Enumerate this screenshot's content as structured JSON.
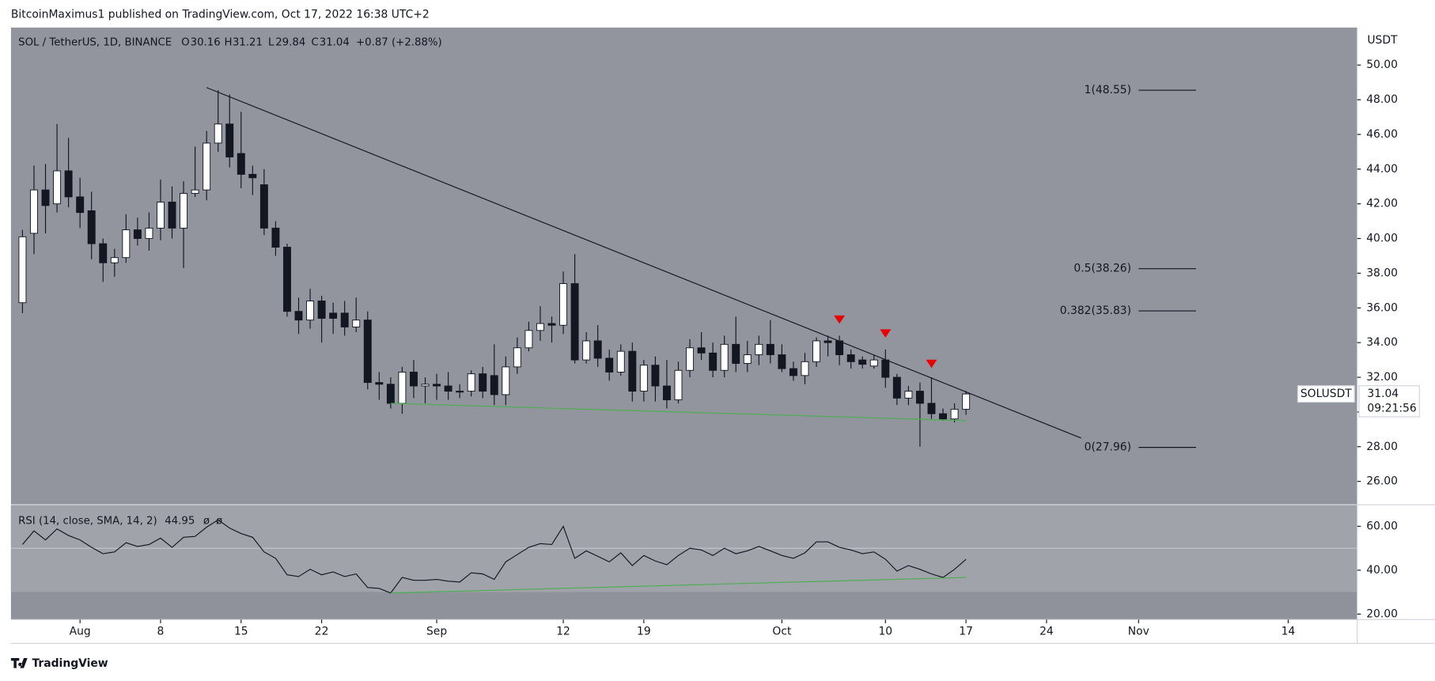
{
  "header": {
    "publisher": "BitcoinMaximus1 published on TradingView.com, Oct 17, 2022 16:38 UTC+2",
    "footer": "TradingView"
  },
  "chart_data": [
    {
      "type": "candlestick",
      "title": "SOL / TetherUS, 1D, BINANCE",
      "ohlc_letters": [
        "O",
        "H",
        "L",
        "C"
      ],
      "change": "+0.87 (+2.88%)",
      "symbol": "SOLUSDT",
      "countdown": "09:21:56",
      "y_unit": "USDT",
      "up_color": "#ffffff",
      "down_color": "#131722",
      "wick_color": "#131722",
      "grid": false,
      "x": [
        "2022-07-27",
        "2022-07-28",
        "2022-07-29",
        "2022-07-30",
        "2022-07-31",
        "2022-08-01",
        "2022-08-02",
        "2022-08-03",
        "2022-08-04",
        "2022-08-05",
        "2022-08-06",
        "2022-08-07",
        "2022-08-08",
        "2022-08-09",
        "2022-08-10",
        "2022-08-11",
        "2022-08-12",
        "2022-08-13",
        "2022-08-14",
        "2022-08-15",
        "2022-08-16",
        "2022-08-17",
        "2022-08-18",
        "2022-08-19",
        "2022-08-20",
        "2022-08-21",
        "2022-08-22",
        "2022-08-23",
        "2022-08-24",
        "2022-08-25",
        "2022-08-26",
        "2022-08-27",
        "2022-08-28",
        "2022-08-29",
        "2022-08-30",
        "2022-08-31",
        "2022-09-01",
        "2022-09-02",
        "2022-09-03",
        "2022-09-04",
        "2022-09-05",
        "2022-09-06",
        "2022-09-07",
        "2022-09-08",
        "2022-09-09",
        "2022-09-10",
        "2022-09-11",
        "2022-09-12",
        "2022-09-13",
        "2022-09-14",
        "2022-09-15",
        "2022-09-16",
        "2022-09-17",
        "2022-09-18",
        "2022-09-19",
        "2022-09-20",
        "2022-09-21",
        "2022-09-22",
        "2022-09-23",
        "2022-09-24",
        "2022-09-25",
        "2022-09-26",
        "2022-09-27",
        "2022-09-28",
        "2022-09-29",
        "2022-09-30",
        "2022-10-01",
        "2022-10-02",
        "2022-10-03",
        "2022-10-04",
        "2022-10-05",
        "2022-10-06",
        "2022-10-07",
        "2022-10-08",
        "2022-10-09",
        "2022-10-10",
        "2022-10-11",
        "2022-10-12",
        "2022-10-13",
        "2022-10-14",
        "2022-10-15",
        "2022-10-16",
        "2022-10-17"
      ],
      "open": [
        36.3,
        40.3,
        42.8,
        42.0,
        43.9,
        42.4,
        41.6,
        39.7,
        38.6,
        38.9,
        40.5,
        40.0,
        40.6,
        42.1,
        40.6,
        42.6,
        42.8,
        45.5,
        46.6,
        44.9,
        43.7,
        43.1,
        40.6,
        39.5,
        35.8,
        35.3,
        36.4,
        35.7,
        35.7,
        34.9,
        35.3,
        31.7,
        31.6,
        30.5,
        32.3,
        31.5,
        31.6,
        31.5,
        31.2,
        31.2,
        32.2,
        32.1,
        31.0,
        32.6,
        33.7,
        34.7,
        35.1,
        35.0,
        37.4,
        33.0,
        34.1,
        33.1,
        32.3,
        33.5,
        31.2,
        32.7,
        31.5,
        30.7,
        32.4,
        33.7,
        33.4,
        32.4,
        33.9,
        32.8,
        33.3,
        33.9,
        33.3,
        32.5,
        32.1,
        32.9,
        34.1,
        34.1,
        33.3,
        33.0,
        32.65,
        33.0,
        32.0,
        30.8,
        31.2,
        30.5,
        29.9,
        29.6,
        30.16
      ],
      "high": [
        40.5,
        44.2,
        44.3,
        46.6,
        45.8,
        43.5,
        42.7,
        40.0,
        39.4,
        41.4,
        41.2,
        41.5,
        43.4,
        43.0,
        43.3,
        45.3,
        46.2,
        48.55,
        48.3,
        47.3,
        44.2,
        44.0,
        41.0,
        39.7,
        36.6,
        37.1,
        36.7,
        36.3,
        36.4,
        36.6,
        35.8,
        32.3,
        32.0,
        32.6,
        33.0,
        32.0,
        32.2,
        32.3,
        31.6,
        32.4,
        32.6,
        33.9,
        33.2,
        34.3,
        35.2,
        36.1,
        35.5,
        38.1,
        39.1,
        34.6,
        35.0,
        33.6,
        33.9,
        34.0,
        33.0,
        33.2,
        33.0,
        32.9,
        34.2,
        34.6,
        34.0,
        34.4,
        35.5,
        34.1,
        34.4,
        35.3,
        33.9,
        32.9,
        33.4,
        34.3,
        34.4,
        34.4,
        33.6,
        33.2,
        33.3,
        33.6,
        32.2,
        31.5,
        31.7,
        32.0,
        30.2,
        30.5,
        31.21
      ],
      "low": [
        35.7,
        39.1,
        40.3,
        41.5,
        41.8,
        40.6,
        38.8,
        37.5,
        37.8,
        38.6,
        39.6,
        39.3,
        39.9,
        40.0,
        38.3,
        42.4,
        42.2,
        45.0,
        44.1,
        42.9,
        42.5,
        40.2,
        39.0,
        35.5,
        34.5,
        34.8,
        34.0,
        34.5,
        34.4,
        34.6,
        31.3,
        30.7,
        30.2,
        29.9,
        30.8,
        30.5,
        30.7,
        30.7,
        30.8,
        30.9,
        30.8,
        30.4,
        30.4,
        32.2,
        33.5,
        34.1,
        34.0,
        34.5,
        32.8,
        32.8,
        32.6,
        31.8,
        32.1,
        30.6,
        30.6,
        30.6,
        30.2,
        30.5,
        32.0,
        33.0,
        32.0,
        32.0,
        32.3,
        32.3,
        32.7,
        32.8,
        32.3,
        31.8,
        31.6,
        32.6,
        33.2,
        32.7,
        32.5,
        32.5,
        32.5,
        31.4,
        30.4,
        30.4,
        28.0,
        29.6,
        29.5,
        29.4,
        29.84
      ],
      "close": [
        40.1,
        42.8,
        41.9,
        43.9,
        42.4,
        41.5,
        39.7,
        38.6,
        38.9,
        40.5,
        40.0,
        40.6,
        42.1,
        40.6,
        42.6,
        42.8,
        45.5,
        46.6,
        44.7,
        43.7,
        43.5,
        40.6,
        39.5,
        35.8,
        35.3,
        36.4,
        35.4,
        35.4,
        34.9,
        35.3,
        31.7,
        31.6,
        30.5,
        32.3,
        31.5,
        31.6,
        31.5,
        31.2,
        31.15,
        32.2,
        31.2,
        31.0,
        32.6,
        33.7,
        34.7,
        35.1,
        35.0,
        37.4,
        33.0,
        34.1,
        33.1,
        32.3,
        33.5,
        31.2,
        32.7,
        31.5,
        30.7,
        32.4,
        33.7,
        33.4,
        32.4,
        33.9,
        32.8,
        33.3,
        33.9,
        33.3,
        32.5,
        32.1,
        32.9,
        34.1,
        34.0,
        33.3,
        32.9,
        32.75,
        33.0,
        32.0,
        30.8,
        31.2,
        30.5,
        29.9,
        29.6,
        30.16,
        31.04
      ],
      "xlim": [
        "2022-07-26",
        "2022-11-20"
      ],
      "xticks": [
        {
          "value": "2022-08-01",
          "label": "Aug"
        },
        {
          "value": "2022-08-08",
          "label": "8"
        },
        {
          "value": "2022-08-15",
          "label": "15"
        },
        {
          "value": "2022-08-22",
          "label": "22"
        },
        {
          "value": "2022-09-01",
          "label": "Sep"
        },
        {
          "value": "2022-09-12",
          "label": "12"
        },
        {
          "value": "2022-09-19",
          "label": "19"
        },
        {
          "value": "2022-10-01",
          "label": "Oct"
        },
        {
          "value": "2022-10-10",
          "label": "10"
        },
        {
          "value": "2022-10-17",
          "label": "17"
        },
        {
          "value": "2022-10-24",
          "label": "24"
        },
        {
          "value": "2022-11-01",
          "label": "Nov"
        },
        {
          "value": "2022-11-14",
          "label": "14"
        }
      ],
      "ylim": [
        24.68,
        52.16
      ],
      "yticks": [
        {
          "value": 26,
          "label": "26.00"
        },
        {
          "value": 28,
          "label": "28.00"
        },
        {
          "value": 30,
          "label": "30.00"
        },
        {
          "value": 32,
          "label": "32.00"
        },
        {
          "value": 34,
          "label": "34.00"
        },
        {
          "value": 36,
          "label": "36.00"
        },
        {
          "value": 38,
          "label": "38.00"
        },
        {
          "value": 40,
          "label": "40.00"
        },
        {
          "value": 42,
          "label": "42.00"
        },
        {
          "value": 44,
          "label": "44.00"
        },
        {
          "value": 46,
          "label": "46.00"
        },
        {
          "value": 48,
          "label": "48.00"
        },
        {
          "value": 50,
          "label": "50.00"
        }
      ],
      "fib_range": [
        "2022-11-01",
        "2022-11-06"
      ],
      "fib_levels": [
        {
          "value": 48.55,
          "label": "1(48.55)"
        },
        {
          "value": 38.26,
          "label": "0.5(38.26)"
        },
        {
          "value": 35.83,
          "label": "0.382(35.83)"
        },
        {
          "value": 27.96,
          "label": "0(27.96)"
        }
      ],
      "lines": [
        {
          "color": "#131722",
          "x": [
            "2022-08-12",
            "2022-10-27"
          ],
          "values": [
            48.7,
            28.5
          ]
        },
        {
          "color": "#4caf50",
          "x": [
            "2022-08-28",
            "2022-10-17"
          ],
          "values": [
            30.5,
            29.5
          ]
        }
      ],
      "markers": {
        "color": "#e60000",
        "x": [
          "2022-10-06",
          "2022-10-10",
          "2022-10-14"
        ],
        "values": [
          35.3,
          34.5,
          32.75
        ]
      }
    },
    {
      "type": "line",
      "title": "RSI (14, close, SMA, 14, 2)",
      "flags": [
        "ø",
        "ø"
      ],
      "color": "#131722",
      "values": [
        51.7,
        57.9,
        53.8,
        58.8,
        55.8,
        53.8,
        50.4,
        47.5,
        48.3,
        52.5,
        50.8,
        51.7,
        54.6,
        50.4,
        55.0,
        55.4,
        59.6,
        62.9,
        59.2,
        56.7,
        55.0,
        48.3,
        45.4,
        37.9,
        37.1,
        40.4,
        37.9,
        39.2,
        37.1,
        38.3,
        32.1,
        31.7,
        29.6,
        36.7,
        35.4,
        35.4,
        35.8,
        35.0,
        34.6,
        38.8,
        38.3,
        35.8,
        43.8,
        47.1,
        50.4,
        52.1,
        51.7,
        60.0,
        45.4,
        48.8,
        46.3,
        43.8,
        47.9,
        42.1,
        46.7,
        44.2,
        42.5,
        46.7,
        50.0,
        49.2,
        46.7,
        50.0,
        47.5,
        48.8,
        50.8,
        48.8,
        46.7,
        45.4,
        47.9,
        52.9,
        52.9,
        50.4,
        49.2,
        47.5,
        48.3,
        45.0,
        39.6,
        42.1,
        40.4,
        38.3,
        36.7,
        40.4,
        44.95
      ],
      "ylim": [
        17.5,
        69.6
      ],
      "yticks": [
        {
          "value": 20,
          "label": "20.00"
        },
        {
          "value": 40,
          "label": "40.00"
        },
        {
          "value": 60,
          "label": "60.00"
        }
      ],
      "band": [
        30,
        70
      ],
      "midline": 50,
      "lines": [
        {
          "color": "#4caf50",
          "x": [
            "2022-08-28",
            "2022-10-17"
          ],
          "values": [
            29.6,
            36.7
          ]
        }
      ]
    }
  ]
}
